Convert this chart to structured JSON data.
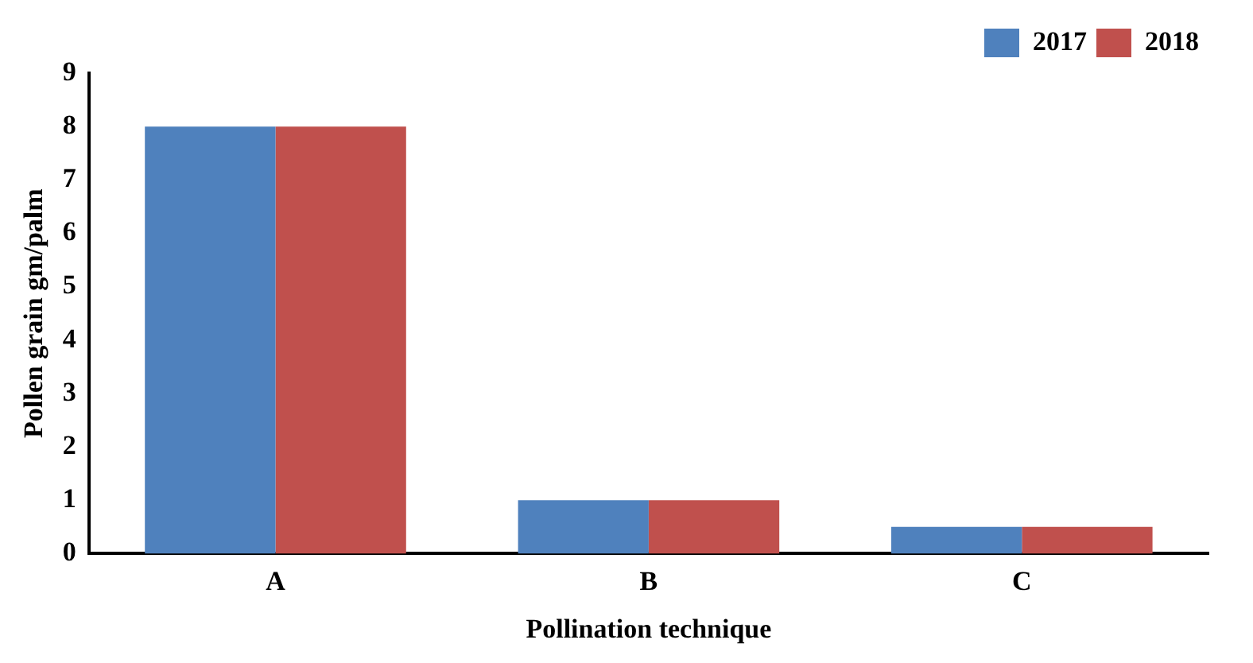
{
  "chart_data": {
    "type": "bar",
    "xlabel": "Pollination technique",
    "ylabel": "Pollen grain gm/palm",
    "categories": [
      "A",
      "B",
      "C"
    ],
    "series": [
      {
        "name": "2017",
        "color": "#4f81bd",
        "values": [
          8,
          1,
          0.5
        ]
      },
      {
        "name": "2018",
        "color": "#c0504d",
        "values": [
          8,
          1,
          0.5
        ]
      }
    ],
    "ylim": [
      0,
      9
    ],
    "yticks": [
      0,
      1,
      2,
      3,
      4,
      5,
      6,
      7,
      8,
      9
    ],
    "grid": false,
    "legend": "top right"
  }
}
